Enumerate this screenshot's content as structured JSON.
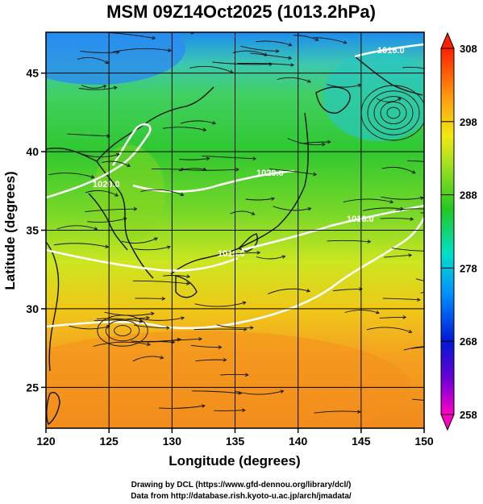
{
  "title": "MSM 09Z14Oct2025 (1013.2hPa)",
  "xlabel": "Longitude (degrees)",
  "ylabel": "Latitude  (degrees)",
  "credits": [
    "Drawing by DCL (https://www.gfd-dennou.org/library/dcl/)",
    "Data from http://database.rish.kyoto-u.ac.jp/arch/jmadata/"
  ],
  "isobar_labels": [
    "1020.0",
    "1020.0",
    "1016.0",
    "1016.0",
    "1016.0"
  ],
  "chart_data": {
    "type": "heatmap",
    "xlim": [
      120,
      150
    ],
    "ylim": [
      22.4,
      47.6
    ],
    "x_ticks": [
      120,
      125,
      130,
      135,
      140,
      145,
      150
    ],
    "y_ticks": [
      25,
      30,
      35,
      40,
      45
    ],
    "grid": true,
    "colorbar": {
      "range": [
        258,
        308
      ],
      "ticks": [
        258,
        268,
        278,
        288,
        298,
        308
      ],
      "placement": "right"
    }
  }
}
